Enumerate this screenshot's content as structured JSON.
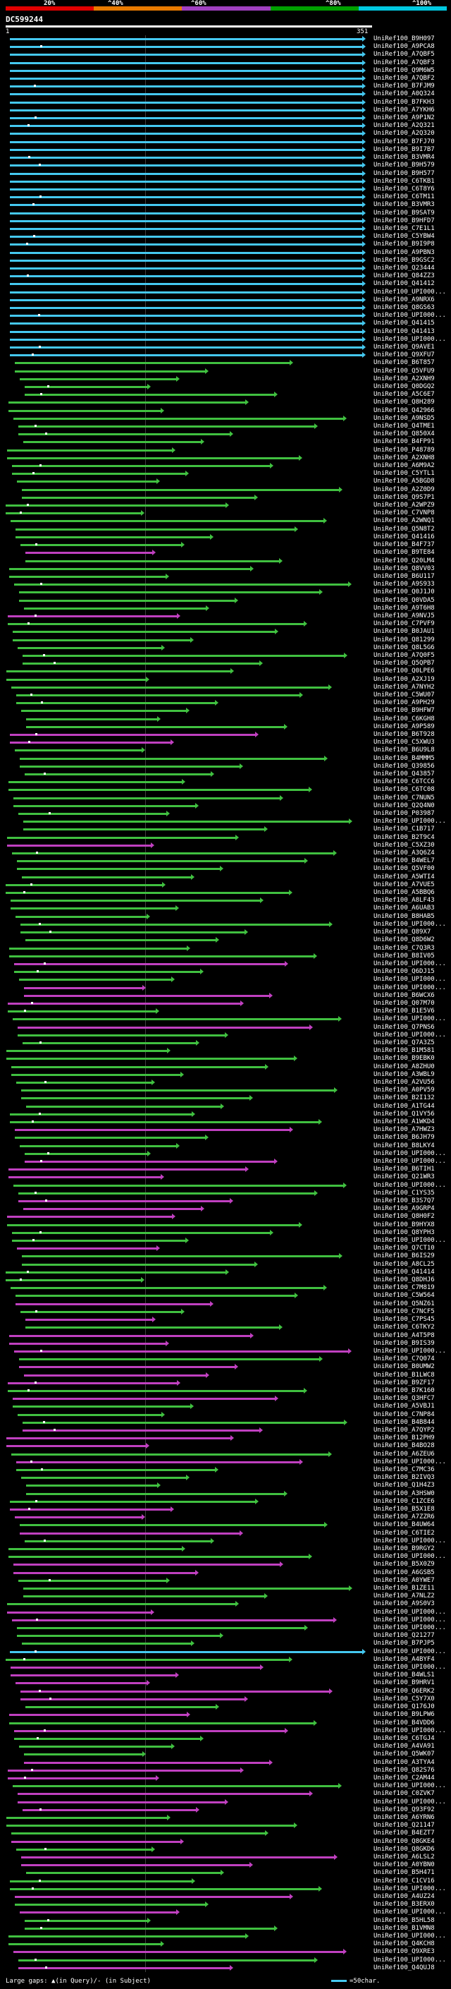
{
  "scale": {
    "labels": [
      "20%",
      "^40%",
      "^60%",
      "^80%",
      "^100%"
    ],
    "colors": [
      "#e00000",
      "#e87a00",
      "#a040c0",
      "#00a000",
      "#00c8e0"
    ]
  },
  "title": "DC599244",
  "query": {
    "start": "1",
    "end": "351"
  },
  "colors": {
    "cyan": "#45c8f0",
    "green": "#40c040",
    "magenta": "#c040c0",
    "white": "#ffffff"
  },
  "hits": [
    {
      "label": "UniRef100_B9H097",
      "cls": "cyan"
    },
    {
      "label": "UniRef100_A9PCA8",
      "cls": "cyan"
    },
    {
      "label": "UniRef100_A7QBF5",
      "cls": "cyan"
    },
    {
      "label": "UniRef100_A7QBF3",
      "cls": "cyan"
    },
    {
      "label": "UniRef100_Q9M6W5",
      "cls": "cyan"
    },
    {
      "label": "UniRef100_A7QBF2",
      "cls": "cyan"
    },
    {
      "label": "UniRef100_B7FJM9",
      "cls": "cyan"
    },
    {
      "label": "UniRef100_A0Q324",
      "cls": "cyan"
    },
    {
      "label": "UniRef100_B7FKH3",
      "cls": "cyan"
    },
    {
      "label": "UniRef100_A7YKH6",
      "cls": "cyan"
    },
    {
      "label": "UniRef100_A9P1N2",
      "cls": "cyan"
    },
    {
      "label": "UniRef100_A2Q321",
      "cls": "cyan"
    },
    {
      "label": "UniRef100_A2Q320",
      "cls": "cyan"
    },
    {
      "label": "UniRef100_B7FJ70",
      "cls": "cyan"
    },
    {
      "label": "UniRef100_B9I7B7",
      "cls": "cyan"
    },
    {
      "label": "UniRef100_B3VMR4",
      "cls": "cyan"
    },
    {
      "label": "UniRef100_B9H579",
      "cls": "cyan"
    },
    {
      "label": "UniRef100_B9H577",
      "cls": "cyan"
    },
    {
      "label": "UniRef100_C6TKB1",
      "cls": "cyan"
    },
    {
      "label": "UniRef100_C6T8Y6",
      "cls": "cyan"
    },
    {
      "label": "UniRef100_C6TM11",
      "cls": "cyan"
    },
    {
      "label": "UniRef100_B3VMR3",
      "cls": "cyan"
    },
    {
      "label": "UniRef100_B9SAT9",
      "cls": "cyan"
    },
    {
      "label": "UniRef100_B9HFD7",
      "cls": "cyan"
    },
    {
      "label": "UniRef100_C7E1L1",
      "cls": "cyan"
    },
    {
      "label": "UniRef100_C5YBW4",
      "cls": "cyan"
    },
    {
      "label": "UniRef100_B9I9P8",
      "cls": "cyan"
    },
    {
      "label": "UniRef100_A9PBN3",
      "cls": "cyan"
    },
    {
      "label": "UniRef100_B9GSC2",
      "cls": "cyan"
    },
    {
      "label": "UniRef100_Q23444",
      "cls": "cyan"
    },
    {
      "label": "UniRef100_Q84ZZ3",
      "cls": "cyan"
    },
    {
      "label": "UniRef100_Q41412",
      "cls": "cyan"
    },
    {
      "label": "UniRef100_UPI000...",
      "cls": "cyan"
    },
    {
      "label": "UniRef100_A9NRX6",
      "cls": "cyan"
    },
    {
      "label": "UniRef100_Q8GS63",
      "cls": "cyan"
    },
    {
      "label": "UniRef100_UPI000...",
      "cls": "cyan"
    },
    {
      "label": "UniRef100_Q41415",
      "cls": "cyan"
    },
    {
      "label": "UniRef100_Q41413",
      "cls": "cyan"
    },
    {
      "label": "UniRef100_UPI000...",
      "cls": "cyan"
    },
    {
      "label": "UniRef100_Q9AVE1",
      "cls": "cyan"
    },
    {
      "label": "UniRef100_Q9XFU7",
      "cls": "cyan"
    },
    {
      "label": "UniRef100_B6T857",
      "cls": "green"
    },
    {
      "label": "UniRef100_Q5VFU9",
      "cls": "green"
    },
    {
      "label": "UniRef100_A2XNH9",
      "cls": "green"
    },
    {
      "label": "UniRef100_Q0DGQ2",
      "cls": "green"
    },
    {
      "label": "UniRef100_A5C6E7",
      "cls": "green"
    },
    {
      "label": "UniRef100_Q8H289",
      "cls": "green"
    },
    {
      "label": "UniRef100_Q42966",
      "cls": "green"
    },
    {
      "label": "UniRef100_A9NSD5",
      "cls": "green"
    },
    {
      "label": "UniRef100_Q4TME1",
      "cls": "green"
    },
    {
      "label": "UniRef100_Q850X4",
      "cls": "green"
    },
    {
      "label": "UniRef100_B4FP91",
      "cls": "green"
    },
    {
      "label": "UniRef100_P48789",
      "cls": "green"
    },
    {
      "label": "UniRef100_A2XNH8",
      "cls": "green"
    },
    {
      "label": "UniRef100_A6M9A2",
      "cls": "green"
    },
    {
      "label": "UniRef100_C5YTL1",
      "cls": "green"
    },
    {
      "label": "UniRef100_A5BGD8",
      "cls": "green"
    },
    {
      "label": "UniRef100_A2Z0D9",
      "cls": "green"
    },
    {
      "label": "UniRef100_Q9S7P1",
      "cls": "green"
    },
    {
      "label": "UniRef100_A2WPZ9",
      "cls": "green"
    },
    {
      "label": "UniRef100_C7VNP8",
      "cls": "green"
    },
    {
      "label": "UniRef100_A2WNQ1",
      "cls": "green"
    },
    {
      "label": "UniRef100_Q5N8T2",
      "cls": "green"
    },
    {
      "label": "UniRef100_Q41416",
      "cls": "green"
    },
    {
      "label": "UniRef100_B4F737",
      "cls": "green"
    },
    {
      "label": "UniRef100_B9TE84",
      "cls": "magenta"
    },
    {
      "label": "UniRef100_Q20LM4",
      "cls": "green"
    },
    {
      "label": "UniRef100_Q8VV03",
      "cls": "green"
    },
    {
      "label": "UniRef100_B6U117",
      "cls": "green"
    },
    {
      "label": "UniRef100_A9S933",
      "cls": "green"
    },
    {
      "label": "UniRef100_Q0J1J0",
      "cls": "green"
    },
    {
      "label": "UniRef100_Q0VDA5",
      "cls": "green"
    },
    {
      "label": "UniRef100_A9T6H8",
      "cls": "green"
    },
    {
      "label": "UniRef100_A9NVJ5",
      "cls": "magenta"
    },
    {
      "label": "UniRef100_C7PVF9",
      "cls": "green"
    },
    {
      "label": "UniRef100_B0JAU1",
      "cls": "green"
    },
    {
      "label": "UniRef100_Q81299",
      "cls": "green"
    },
    {
      "label": "UniRef100_Q8L5G6",
      "cls": "green"
    },
    {
      "label": "UniRef100_A7Q0F5",
      "cls": "green"
    },
    {
      "label": "UniRef100_Q5QPB7",
      "cls": "green"
    },
    {
      "label": "UniRef100_Q0LPE6",
      "cls": "green"
    },
    {
      "label": "UniRef100_A2XJ19",
      "cls": "green"
    },
    {
      "label": "UniRef100_A7NYH2",
      "cls": "green"
    },
    {
      "label": "UniRef100_C5WU07",
      "cls": "green"
    },
    {
      "label": "UniRef100_A9PH29",
      "cls": "green"
    },
    {
      "label": "UniRef100_B9HFW7",
      "cls": "green"
    },
    {
      "label": "UniRef100_C6KGH8",
      "cls": "green"
    },
    {
      "label": "UniRef100_A9P589",
      "cls": "green"
    },
    {
      "label": "UniRef100_B6T928",
      "cls": "magenta"
    },
    {
      "label": "UniRef100_C5XWU3",
      "cls": "magenta"
    },
    {
      "label": "UniRef100_B6U9L8",
      "cls": "green"
    },
    {
      "label": "UniRef100_B4MMM5",
      "cls": "green"
    },
    {
      "label": "UniRef100_Q39856",
      "cls": "green"
    },
    {
      "label": "UniRef100_Q43857",
      "cls": "green"
    },
    {
      "label": "UniRef100_C6TCC6",
      "cls": "green"
    },
    {
      "label": "UniRef100_C6TC08",
      "cls": "green"
    },
    {
      "label": "UniRef100_C7NUN5",
      "cls": "green"
    },
    {
      "label": "UniRef100_Q2Q4N0",
      "cls": "green"
    },
    {
      "label": "UniRef100_P03987",
      "cls": "green"
    },
    {
      "label": "UniRef100_UPI000...",
      "cls": "green"
    },
    {
      "label": "UniRef100_C1B717",
      "cls": "green"
    },
    {
      "label": "UniRef100_B2T9C4",
      "cls": "green"
    },
    {
      "label": "UniRef100_C5XZ30",
      "cls": "magenta"
    },
    {
      "label": "UniRef100_A3Q6Z4",
      "cls": "green"
    },
    {
      "label": "UniRef100_B4WEL7",
      "cls": "green"
    },
    {
      "label": "UniRef100_Q5VF00",
      "cls": "green"
    },
    {
      "label": "UniRef100_A5WTI4",
      "cls": "green"
    },
    {
      "label": "UniRef100_A7VUE5",
      "cls": "green"
    },
    {
      "label": "UniRef100_A5BBQ6",
      "cls": "green"
    },
    {
      "label": "UniRef100_A8LF43",
      "cls": "green"
    },
    {
      "label": "UniRef100_A6UAB3",
      "cls": "green"
    },
    {
      "label": "UniRef100_B8HAB5",
      "cls": "green"
    },
    {
      "label": "UniRef100_UPI000...",
      "cls": "green"
    },
    {
      "label": "UniRef100_Q89X7",
      "cls": "green"
    },
    {
      "label": "UniRef100_Q8D6W2",
      "cls": "green"
    },
    {
      "label": "UniRef100_C7Q3R3",
      "cls": "green"
    },
    {
      "label": "UniRef100_B8IV05",
      "cls": "green"
    },
    {
      "label": "UniRef100_UPI000...",
      "cls": "magenta"
    },
    {
      "label": "UniRef100_Q6DJ15",
      "cls": "green"
    },
    {
      "label": "UniRef100_UPI000...",
      "cls": "green"
    },
    {
      "label": "UniRef100_UPI000...",
      "cls": "magenta"
    },
    {
      "label": "UniRef100_B6WCX6",
      "cls": "magenta"
    },
    {
      "label": "UniRef100_Q07M70",
      "cls": "magenta"
    },
    {
      "label": "UniRef100_B1E5V6",
      "cls": "green"
    },
    {
      "label": "UniRef100_UPI000...",
      "cls": "green"
    },
    {
      "label": "UniRef100_Q7PNS6",
      "cls": "magenta"
    },
    {
      "label": "UniRef100_UPI000...",
      "cls": "green"
    },
    {
      "label": "UniRef100_Q7A3Z5",
      "cls": "green"
    },
    {
      "label": "UniRef100_B1M581",
      "cls": "green"
    },
    {
      "label": "UniRef100_B9EBK0",
      "cls": "green"
    },
    {
      "label": "UniRef100_A8ZHU0",
      "cls": "green"
    },
    {
      "label": "UniRef100_A3WBL9",
      "cls": "green"
    },
    {
      "label": "UniRef100_A2VU56",
      "cls": "green"
    },
    {
      "label": "UniRef100_A0PV59",
      "cls": "green"
    },
    {
      "label": "UniRef100_B2I132",
      "cls": "green"
    },
    {
      "label": "UniRef100_A1TG44",
      "cls": "green"
    },
    {
      "label": "UniRef100_Q1VY56",
      "cls": "green"
    },
    {
      "label": "UniRef100_A1WKD4",
      "cls": "green"
    },
    {
      "label": "UniRef100_A7HWZ3",
      "cls": "magenta"
    },
    {
      "label": "UniRef100_B6JH79",
      "cls": "green"
    },
    {
      "label": "UniRef100_B8LKY4",
      "cls": "green"
    },
    {
      "label": "UniRef100_UPI000...",
      "cls": "green"
    },
    {
      "label": "UniRef100_UPI000...",
      "cls": "magenta"
    },
    {
      "label": "UniRef100_B6TIH1",
      "cls": "magenta"
    },
    {
      "label": "UniRef100_Q21WR3",
      "cls": "magenta"
    },
    {
      "label": "UniRef100_UPI000...",
      "cls": "green"
    },
    {
      "label": "UniRef100_C1YS35",
      "cls": "green"
    },
    {
      "label": "UniRef100_B3S7Q7",
      "cls": "magenta"
    },
    {
      "label": "UniRef100_A9GRP4",
      "cls": "magenta"
    },
    {
      "label": "UniRef100_Q8H0F2",
      "cls": "magenta"
    },
    {
      "label": "UniRef100_B9HYX8",
      "cls": "green"
    },
    {
      "label": "UniRef100_Q8YPH3",
      "cls": "green"
    },
    {
      "label": "UniRef100_UPI000...",
      "cls": "green"
    },
    {
      "label": "UniRef100_Q7CT10",
      "cls": "magenta"
    },
    {
      "label": "UniRef100_B6IS29",
      "cls": "green"
    },
    {
      "label": "UniRef100_A8CL25",
      "cls": "green"
    },
    {
      "label": "UniRef100_Q41414",
      "cls": "green"
    },
    {
      "label": "UniRef100_Q8DHJ6",
      "cls": "green"
    },
    {
      "label": "UniRef100_C7M819",
      "cls": "green"
    },
    {
      "label": "UniRef100_C5W564",
      "cls": "green"
    },
    {
      "label": "UniRef100_Q5NZ61",
      "cls": "magenta"
    },
    {
      "label": "UniRef100_C7NCF5",
      "cls": "green"
    },
    {
      "label": "UniRef100_C7PS45",
      "cls": "magenta"
    },
    {
      "label": "UniRef100_C6TKY2",
      "cls": "green"
    },
    {
      "label": "UniRef100_A4T5P8",
      "cls": "magenta"
    },
    {
      "label": "UniRef100_B9IS39",
      "cls": "magenta"
    },
    {
      "label": "UniRef100_UPI000...",
      "cls": "magenta"
    },
    {
      "label": "UniRef100_C7Q074",
      "cls": "green"
    },
    {
      "label": "UniRef100_B0UMW2",
      "cls": "magenta"
    },
    {
      "label": "UniRef100_B1LWC8",
      "cls": "magenta"
    },
    {
      "label": "UniRef100_B9ZF17",
      "cls": "magenta"
    },
    {
      "label": "UniRef100_B7K160",
      "cls": "green"
    },
    {
      "label": "UniRef100_Q3HFC7",
      "cls": "magenta"
    },
    {
      "label": "UniRef100_A5VBJ1",
      "cls": "green"
    },
    {
      "label": "UniRef100_C7NP84",
      "cls": "green"
    },
    {
      "label": "UniRef100_B4B844",
      "cls": "green"
    },
    {
      "label": "UniRef100_A7QYP2",
      "cls": "magenta"
    },
    {
      "label": "UniRef100_B12PH9",
      "cls": "magenta"
    },
    {
      "label": "UniRef100_B4BO28",
      "cls": "magenta"
    },
    {
      "label": "UniRef100_A6ZEU6",
      "cls": "green"
    },
    {
      "label": "UniRef100_UPI000...",
      "cls": "magenta"
    },
    {
      "label": "UniRef100_C7MC36",
      "cls": "green"
    },
    {
      "label": "UniRef100_B2IVQ3",
      "cls": "green"
    },
    {
      "label": "UniRef100_Q1H4Z3",
      "cls": "green"
    },
    {
      "label": "UniRef100_A3HSW0",
      "cls": "green"
    },
    {
      "label": "UniRef100_C1ZCE6",
      "cls": "green"
    },
    {
      "label": "UniRef100_B5X1E8",
      "cls": "magenta"
    },
    {
      "label": "UniRef100_A7ZZR6",
      "cls": "magenta"
    },
    {
      "label": "UniRef100_B4UW64",
      "cls": "green"
    },
    {
      "label": "UniRef100_C6TIE2",
      "cls": "magenta"
    },
    {
      "label": "UniRef100_UPI000...",
      "cls": "green"
    },
    {
      "label": "UniRef100_B9RGY2",
      "cls": "green"
    },
    {
      "label": "UniRef100_UPI000...",
      "cls": "green"
    },
    {
      "label": "UniRef100_B5X0Z9",
      "cls": "magenta"
    },
    {
      "label": "UniRef100_A6GSB5",
      "cls": "magenta"
    },
    {
      "label": "UniRef100_A0YWE7",
      "cls": "green"
    },
    {
      "label": "UniRef100_B1ZE11",
      "cls": "green"
    },
    {
      "label": "UniRef100_A7NLZ2",
      "cls": "green"
    },
    {
      "label": "UniRef100_A9S0V3",
      "cls": "green"
    },
    {
      "label": "UniRef100_UPI000...",
      "cls": "magenta"
    },
    {
      "label": "UniRef100_UPI000...",
      "cls": "magenta"
    },
    {
      "label": "UniRef100_UPI000...",
      "cls": "green"
    },
    {
      "label": "UniRef100_Q21277",
      "cls": "green"
    },
    {
      "label": "UniRef100_B7PJP5",
      "cls": "green"
    },
    {
      "label": "UniRef100_UPI000...",
      "cls": "cyan"
    },
    {
      "label": "UniRef100_A4BYF4",
      "cls": "green"
    },
    {
      "label": "UniRef100_UPI000...",
      "cls": "magenta"
    },
    {
      "label": "UniRef100_B4WLS1",
      "cls": "magenta"
    },
    {
      "label": "UniRef100_B9HRV1",
      "cls": "magenta"
    },
    {
      "label": "UniRef100_Q6ERK2",
      "cls": "magenta"
    },
    {
      "label": "UniRef100_C5Y7X0",
      "cls": "magenta"
    },
    {
      "label": "UniRef100_Q176J0",
      "cls": "green"
    },
    {
      "label": "UniRef100_B9LPW6",
      "cls": "magenta"
    },
    {
      "label": "UniRef100_B4VDD6",
      "cls": "green"
    },
    {
      "label": "UniRef100_UPI000...",
      "cls": "magenta"
    },
    {
      "label": "UniRef100_C6TGJ4",
      "cls": "green"
    },
    {
      "label": "UniRef100_A4VA91",
      "cls": "green"
    },
    {
      "label": "UniRef100_Q5WK07",
      "cls": "green"
    },
    {
      "label": "UniRef100_A3TYA4",
      "cls": "magenta"
    },
    {
      "label": "UniRef100_Q82S76",
      "cls": "magenta"
    },
    {
      "label": "UniRef100_C2AM44",
      "cls": "magenta"
    },
    {
      "label": "UniRef100_UPI000...",
      "cls": "green"
    },
    {
      "label": "UniRef100_C0ZVK7",
      "cls": "magenta"
    },
    {
      "label": "UniRef100_UPI000...",
      "cls": "magenta"
    },
    {
      "label": "UniRef100_Q93F92",
      "cls": "magenta"
    },
    {
      "label": "UniRef100_A6YRN6",
      "cls": "green"
    },
    {
      "label": "UniRef100_Q21147",
      "cls": "green"
    },
    {
      "label": "UniRef100_B4EZT7",
      "cls": "green"
    },
    {
      "label": "UniRef100_Q8GKE4",
      "cls": "magenta"
    },
    {
      "label": "UniRef100_Q8GKD6",
      "cls": "green"
    },
    {
      "label": "UniRef100_A6LSL2",
      "cls": "magenta"
    },
    {
      "label": "UniRef100_A0YBN0",
      "cls": "magenta"
    },
    {
      "label": "UniRef100_B5H471",
      "cls": "green"
    },
    {
      "label": "UniRef100_C1CV16",
      "cls": "green"
    },
    {
      "label": "UniRef100_UPI000...",
      "cls": "green"
    },
    {
      "label": "UniRef100_A4UZ24",
      "cls": "magenta"
    },
    {
      "label": "UniRef100_B3ERX0",
      "cls": "green"
    },
    {
      "label": "UniRef100_UPI000...",
      "cls": "magenta"
    },
    {
      "label": "UniRef100_B5HL58",
      "cls": "green"
    },
    {
      "label": "UniRef100_B1VMN8",
      "cls": "green"
    },
    {
      "label": "UniRef100_UPI000...",
      "cls": "green"
    },
    {
      "label": "UniRef100_Q4KCH8",
      "cls": "green"
    },
    {
      "label": "UniRef100_Q9XRE3",
      "cls": "magenta"
    },
    {
      "label": "UniRef100_UPI000...",
      "cls": "green"
    },
    {
      "label": "UniRef100_Q4QUJ8",
      "cls": "magenta"
    }
  ],
  "footer": {
    "gaps_text": "Large gaps: ▲(in Query)/- (in Subject)",
    "legend_text": "=50char."
  }
}
